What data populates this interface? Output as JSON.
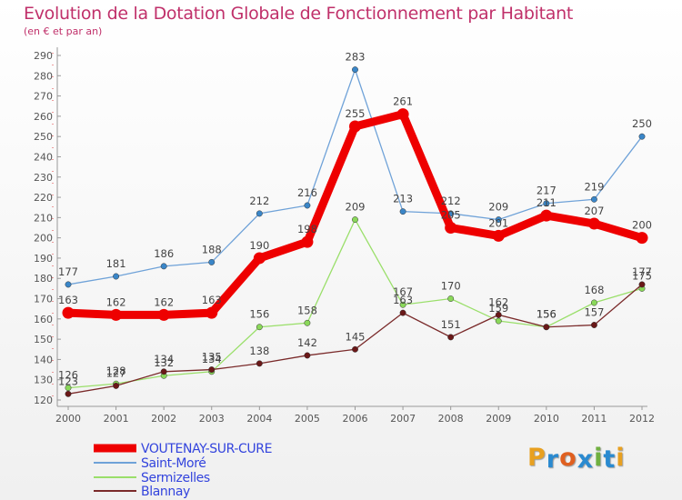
{
  "title": "Evolution de la Dotation Globale de Fonctionnement par Habitant",
  "subtitle": "(en € et par an)",
  "logo": {
    "text": "Proxiti",
    "letters": [
      "P",
      "r",
      "o",
      "x",
      "i",
      "t",
      "i"
    ],
    "colors": [
      "#e8a020",
      "#2a8ad0",
      "#e06020",
      "#2a8ad0",
      "#70b040",
      "#2a8ad0",
      "#e8a020"
    ]
  },
  "chart_data": {
    "type": "line",
    "title": "Evolution de la Dotation Globale de Fonctionnement par Habitant",
    "subtitle": "(en € et par an)",
    "x": [
      "2000",
      "2001",
      "2002",
      "2003",
      "2004",
      "2005",
      "2006",
      "2007",
      "2008",
      "2009",
      "2010",
      "2011",
      "2012"
    ],
    "ylim": [
      120,
      290
    ],
    "yticks": [
      "120",
      "130",
      "140",
      "150",
      "160",
      "170",
      "180",
      "190",
      "200",
      "210",
      "220",
      "230",
      "240",
      "250",
      "260",
      "270",
      "280",
      "290"
    ],
    "grid": false,
    "legend_position": "bottom-left",
    "series": [
      {
        "name": "VOUTENAY-SUR-CURE",
        "color": "#ee0000",
        "emphasis": true,
        "values": [
          163,
          162,
          162,
          163,
          190,
          198,
          255,
          261,
          205,
          201,
          211,
          207,
          200
        ],
        "labels": [
          "163",
          "162",
          "162",
          "163",
          "190",
          "198",
          "255",
          "261",
          "205",
          "201",
          "211",
          "207",
          "200"
        ]
      },
      {
        "name": "Saint-Moré",
        "color": "#6fa2d8",
        "point_color": "#3a86c8",
        "values": [
          177,
          181,
          186,
          188,
          212,
          216,
          283,
          213,
          212,
          209,
          217,
          219,
          250
        ],
        "labels": [
          "177",
          "181",
          "186",
          "188",
          "212",
          "216",
          "283",
          "213",
          "212",
          "209",
          "217",
          "219",
          "250"
        ]
      },
      {
        "name": "Sermizelles",
        "color": "#9adf6a",
        "point_color": "#8ad85a",
        "values": [
          126,
          128,
          132,
          134,
          156,
          158,
          209,
          167,
          170,
          159,
          156,
          168,
          175
        ],
        "labels": [
          "126",
          "128",
          "132",
          "134",
          "156",
          "158",
          "209",
          "167",
          "170",
          "159",
          "156",
          "168",
          "175"
        ]
      },
      {
        "name": "Blannay",
        "color": "#7a2a2a",
        "point_color": "#6a1818",
        "values": [
          123,
          127,
          134,
          135,
          138,
          142,
          145,
          163,
          151,
          162,
          156,
          157,
          177
        ],
        "labels": [
          "123",
          "127",
          "134",
          "135",
          "138",
          "142",
          "145",
          "163",
          "151",
          "162",
          "156",
          "157",
          "177"
        ]
      }
    ]
  }
}
